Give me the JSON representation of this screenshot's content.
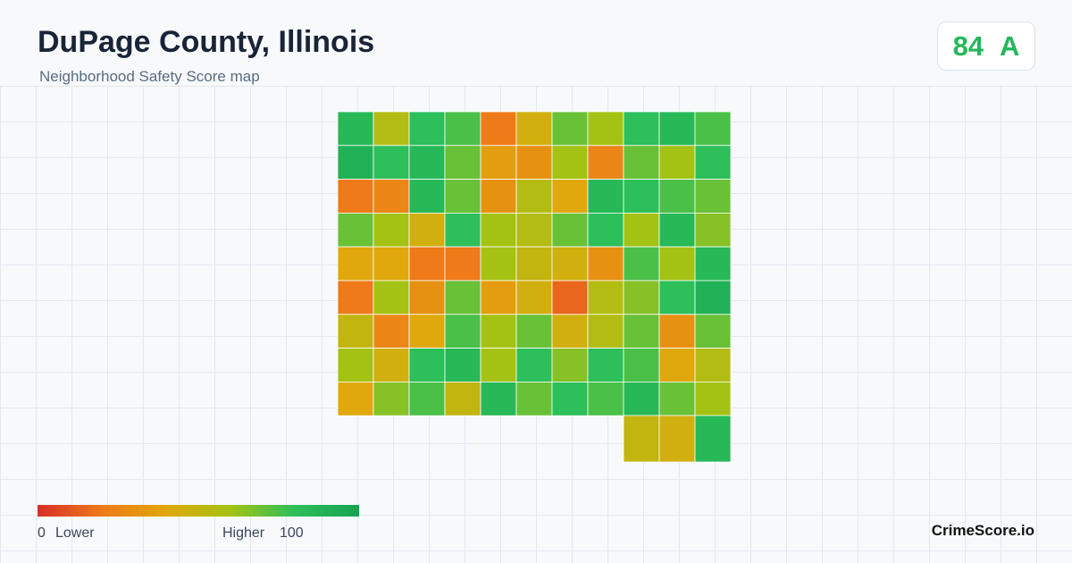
{
  "header": {
    "title": "DuPage County, Illinois",
    "subtitle": "Neighborhood Safety Score map"
  },
  "badge": {
    "score": 84,
    "grade": "A",
    "color": "#22b85a"
  },
  "legend": {
    "min": 0,
    "min_label": "Lower",
    "max_label": "Higher",
    "max": 100,
    "colors": [
      "#d62f27",
      "#ee7a1a",
      "#e0a80c",
      "#a4c214",
      "#2cbf5a",
      "#16a352"
    ]
  },
  "map": {
    "cells": [
      [
        85,
        55,
        80,
        75,
        20,
        45,
        70,
        60,
        80,
        85,
        75
      ],
      [
        90,
        80,
        85,
        70,
        35,
        30,
        60,
        25,
        70,
        60,
        80
      ],
      [
        20,
        25,
        85,
        70,
        30,
        55,
        40,
        85,
        80,
        75,
        70
      ],
      [
        70,
        60,
        45,
        80,
        60,
        55,
        70,
        80,
        60,
        85,
        65
      ],
      [
        40,
        40,
        20,
        20,
        60,
        50,
        45,
        30,
        75,
        60,
        85
      ],
      [
        20,
        60,
        30,
        70,
        35,
        45,
        15,
        55,
        65,
        80,
        90
      ],
      [
        50,
        25,
        40,
        75,
        60,
        70,
        45,
        55,
        70,
        30,
        70
      ],
      [
        60,
        45,
        80,
        85,
        60,
        80,
        65,
        80,
        75,
        40,
        55
      ],
      [
        40,
        65,
        75,
        50,
        85,
        70,
        80,
        75,
        85,
        70,
        60
      ],
      [
        null,
        null,
        null,
        null,
        null,
        null,
        null,
        null,
        50,
        45,
        85
      ]
    ]
  },
  "footer": {
    "brand": "CrimeScore.io"
  }
}
